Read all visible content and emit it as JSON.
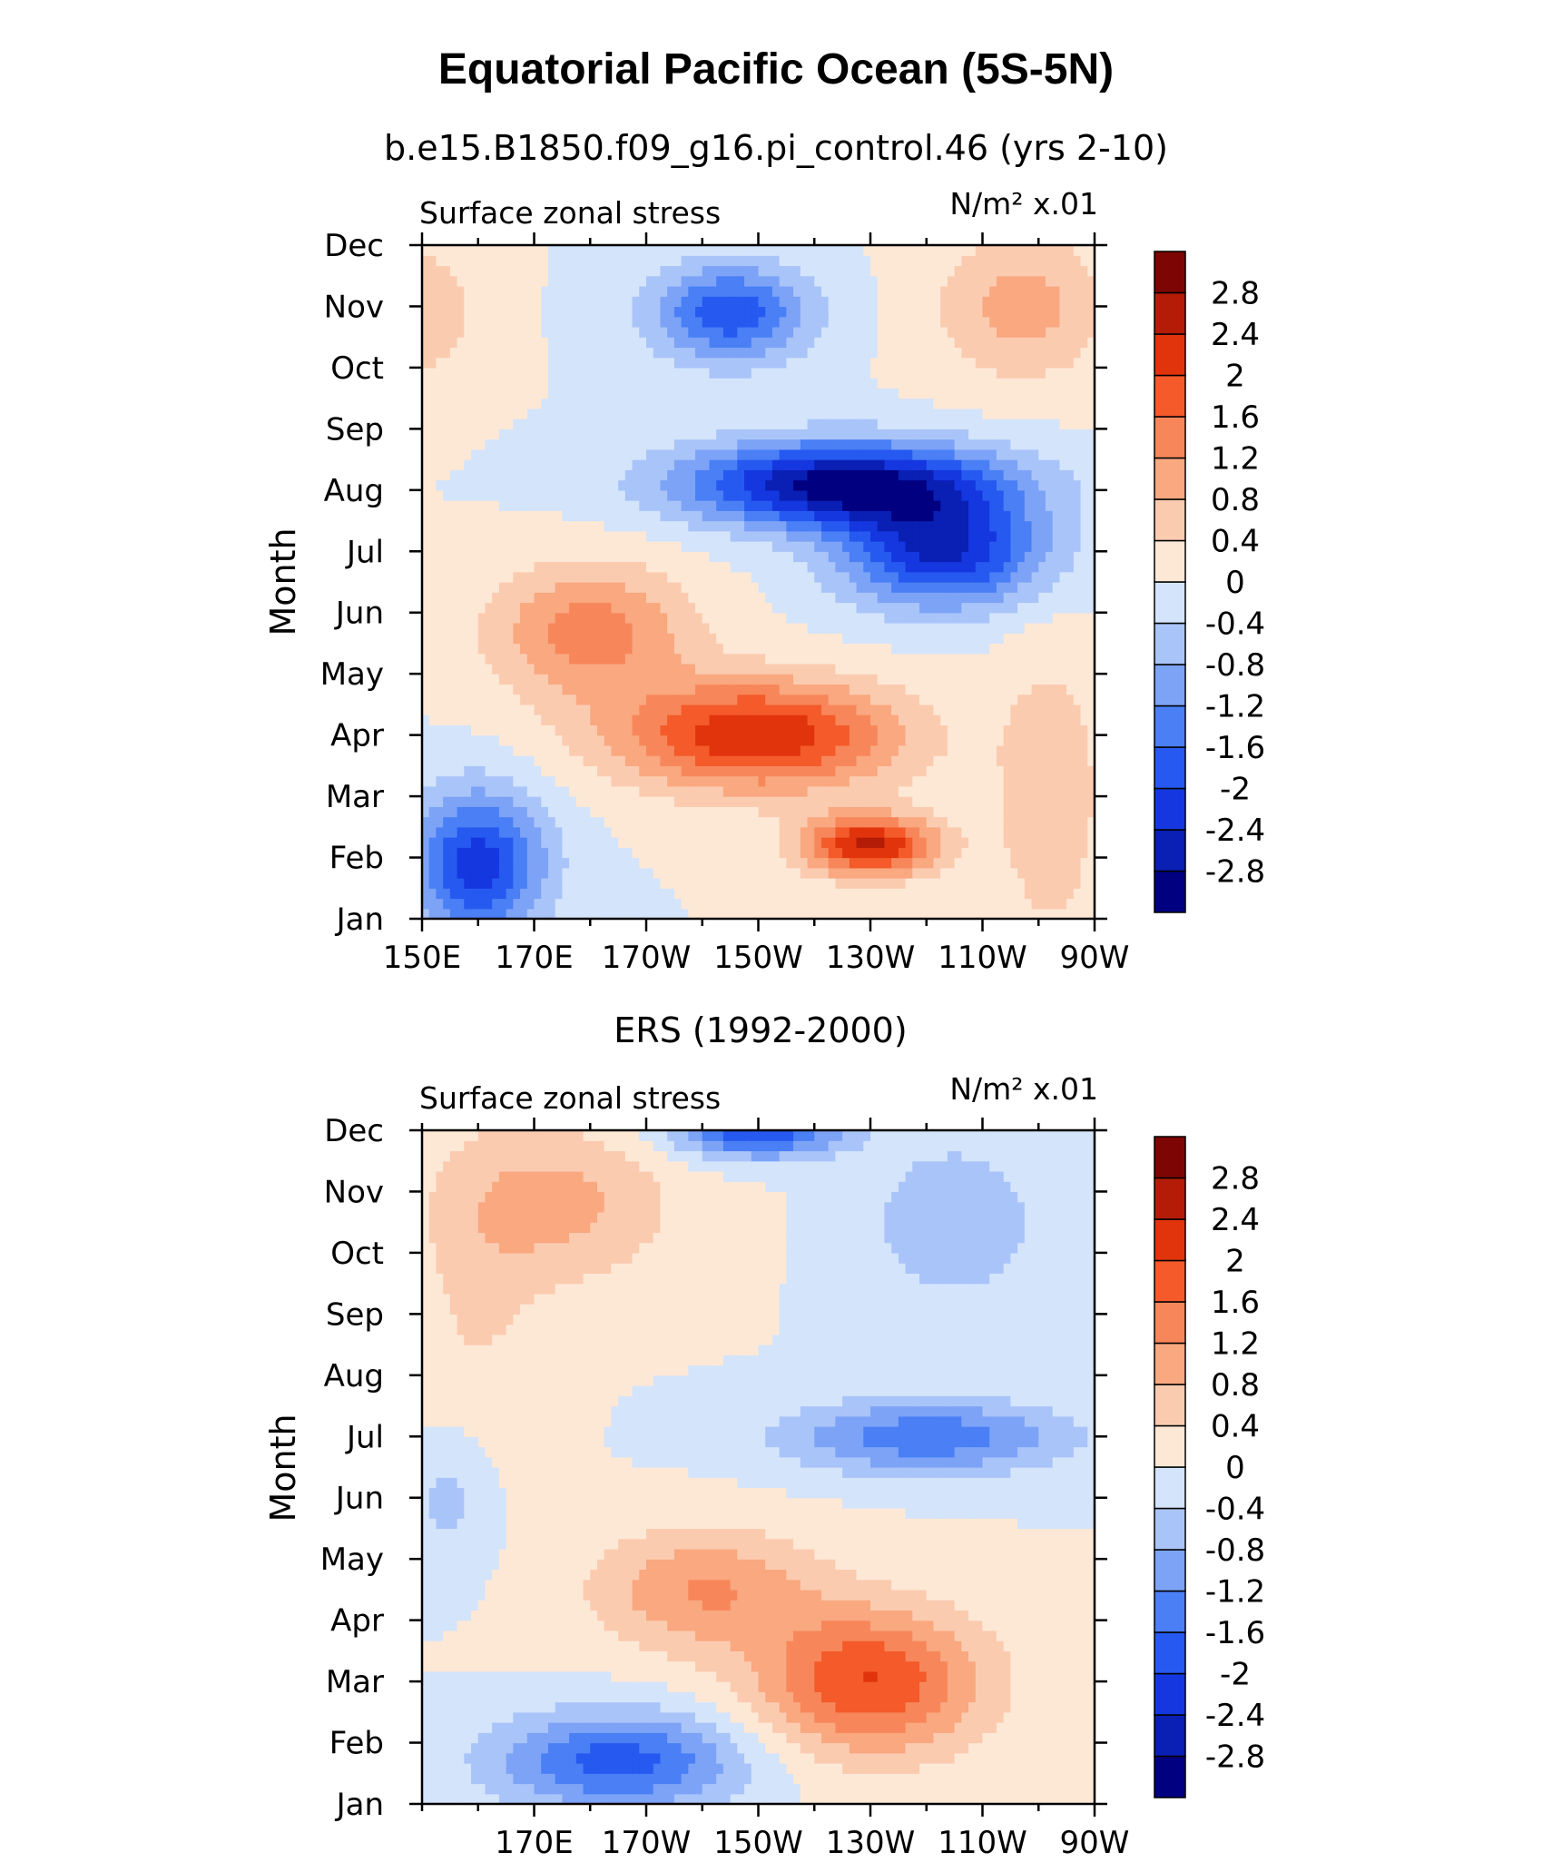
{
  "title": "Equatorial Pacific Ocean (5S-5N)",
  "chart_data": [
    {
      "type": "heatmap",
      "panel_title": "b.e15.B1850.f09_g16.pi_control.46 (yrs 2-10)",
      "variable_label": "Surface zonal stress",
      "units_label": "N/m² x.01",
      "ylabel": "Month",
      "y_ticks": [
        "Jan",
        "Feb",
        "Mar",
        "Apr",
        "May",
        "Jun",
        "Jul",
        "Aug",
        "Sep",
        "Oct",
        "Nov",
        "Dec"
      ],
      "x_ticks": [
        "150E",
        "170E",
        "170W",
        "150W",
        "130W",
        "110W",
        "90W"
      ],
      "x_tick_lons": [
        150,
        170,
        190,
        210,
        230,
        250,
        270
      ],
      "xlim": [
        150,
        270
      ],
      "ylim": [
        1,
        12
      ],
      "features": [
        {
          "lon": 225,
          "month": 8.1,
          "value": -3.0,
          "rl": 28,
          "rm": 0.7
        },
        {
          "lon": 243,
          "month": 7.0,
          "value": -2.4,
          "rl": 18,
          "rm": 0.9
        },
        {
          "lon": 205,
          "month": 10.9,
          "value": -1.9,
          "rl": 14,
          "rm": 0.8
        },
        {
          "lon": 160,
          "month": 1.9,
          "value": -2.2,
          "rl": 12,
          "rm": 1.2
        },
        {
          "lon": 210,
          "month": 4.0,
          "value": 2.4,
          "rl": 25,
          "rm": 0.9
        },
        {
          "lon": 180,
          "month": 5.7,
          "value": 1.4,
          "rl": 18,
          "rm": 1.1
        },
        {
          "lon": 230,
          "month": 2.2,
          "value": 2.5,
          "rl": 12,
          "rm": 0.5
        },
        {
          "lon": 150,
          "month": 10.9,
          "value": 0.7,
          "rl": 10,
          "rm": 1.2
        },
        {
          "lon": 257,
          "month": 11.0,
          "value": 1.0,
          "rl": 15,
          "rm": 1.2
        },
        {
          "lon": 262,
          "month": 3.0,
          "value": 0.7,
          "rl": 10,
          "rm": 2.5
        }
      ]
    },
    {
      "type": "heatmap",
      "panel_title": "ERS (1992-2000)",
      "variable_label": "Surface zonal stress",
      "units_label": "N/m² x.01",
      "ylabel": "Month",
      "y_ticks": [
        "Jan",
        "Feb",
        "Mar",
        "Apr",
        "May",
        "Jun",
        "Jul",
        "Aug",
        "Sep",
        "Oct",
        "Nov",
        "Dec"
      ],
      "x_ticks": [
        "170E",
        "170W",
        "150W",
        "130W",
        "110W",
        "90W"
      ],
      "x_tick_lons": [
        170,
        190,
        210,
        230,
        250,
        270
      ],
      "xlim": [
        150,
        270
      ],
      "ylim": [
        1,
        12
      ],
      "features": [
        {
          "lon": 230,
          "month": 3.0,
          "value": 2.0,
          "rl": 20,
          "rm": 1.2
        },
        {
          "lon": 200,
          "month": 4.5,
          "value": 1.2,
          "rl": 20,
          "rm": 1.0
        },
        {
          "lon": 175,
          "month": 10.8,
          "value": 0.9,
          "rl": 20,
          "rm": 1.3
        },
        {
          "lon": 160,
          "month": 9.0,
          "value": 0.4,
          "rl": 12,
          "rm": 3.0
        },
        {
          "lon": 185,
          "month": 1.7,
          "value": -1.8,
          "rl": 22,
          "rm": 0.8
        },
        {
          "lon": 240,
          "month": 7.0,
          "value": -1.5,
          "rl": 25,
          "rm": 0.6
        },
        {
          "lon": 210,
          "month": 12.0,
          "value": -2.0,
          "rl": 15,
          "rm": 0.45
        },
        {
          "lon": 245,
          "month": 10.5,
          "value": -0.8,
          "rl": 15,
          "rm": 1.3
        },
        {
          "lon": 155,
          "month": 6.0,
          "value": -0.6,
          "rl": 8,
          "rm": 1.2
        }
      ]
    }
  ],
  "colorbar": {
    "levels": [
      -3.2,
      -2.8,
      -2.4,
      -2.0,
      -1.6,
      -1.2,
      -0.8,
      -0.4,
      0,
      0.4,
      0.8,
      1.2,
      1.6,
      2.0,
      2.4,
      2.8,
      3.2
    ],
    "labels": [
      "-2.8",
      "-2.4",
      "-2",
      "-1.6",
      "-1.2",
      "-0.8",
      "-0.4",
      "0",
      "0.4",
      "0.8",
      "1.2",
      "1.6",
      "2",
      "2.4",
      "2.8"
    ],
    "colors": [
      "#000080",
      "#0a1fb3",
      "#1437e0",
      "#2659f0",
      "#4a7ff5",
      "#7da3f7",
      "#a9c4f8",
      "#d3e4fb",
      "#fde8d6",
      "#fbcbb0",
      "#f9a880",
      "#f7875a",
      "#f45a2a",
      "#e1340d",
      "#b41c07",
      "#7d0504"
    ]
  }
}
